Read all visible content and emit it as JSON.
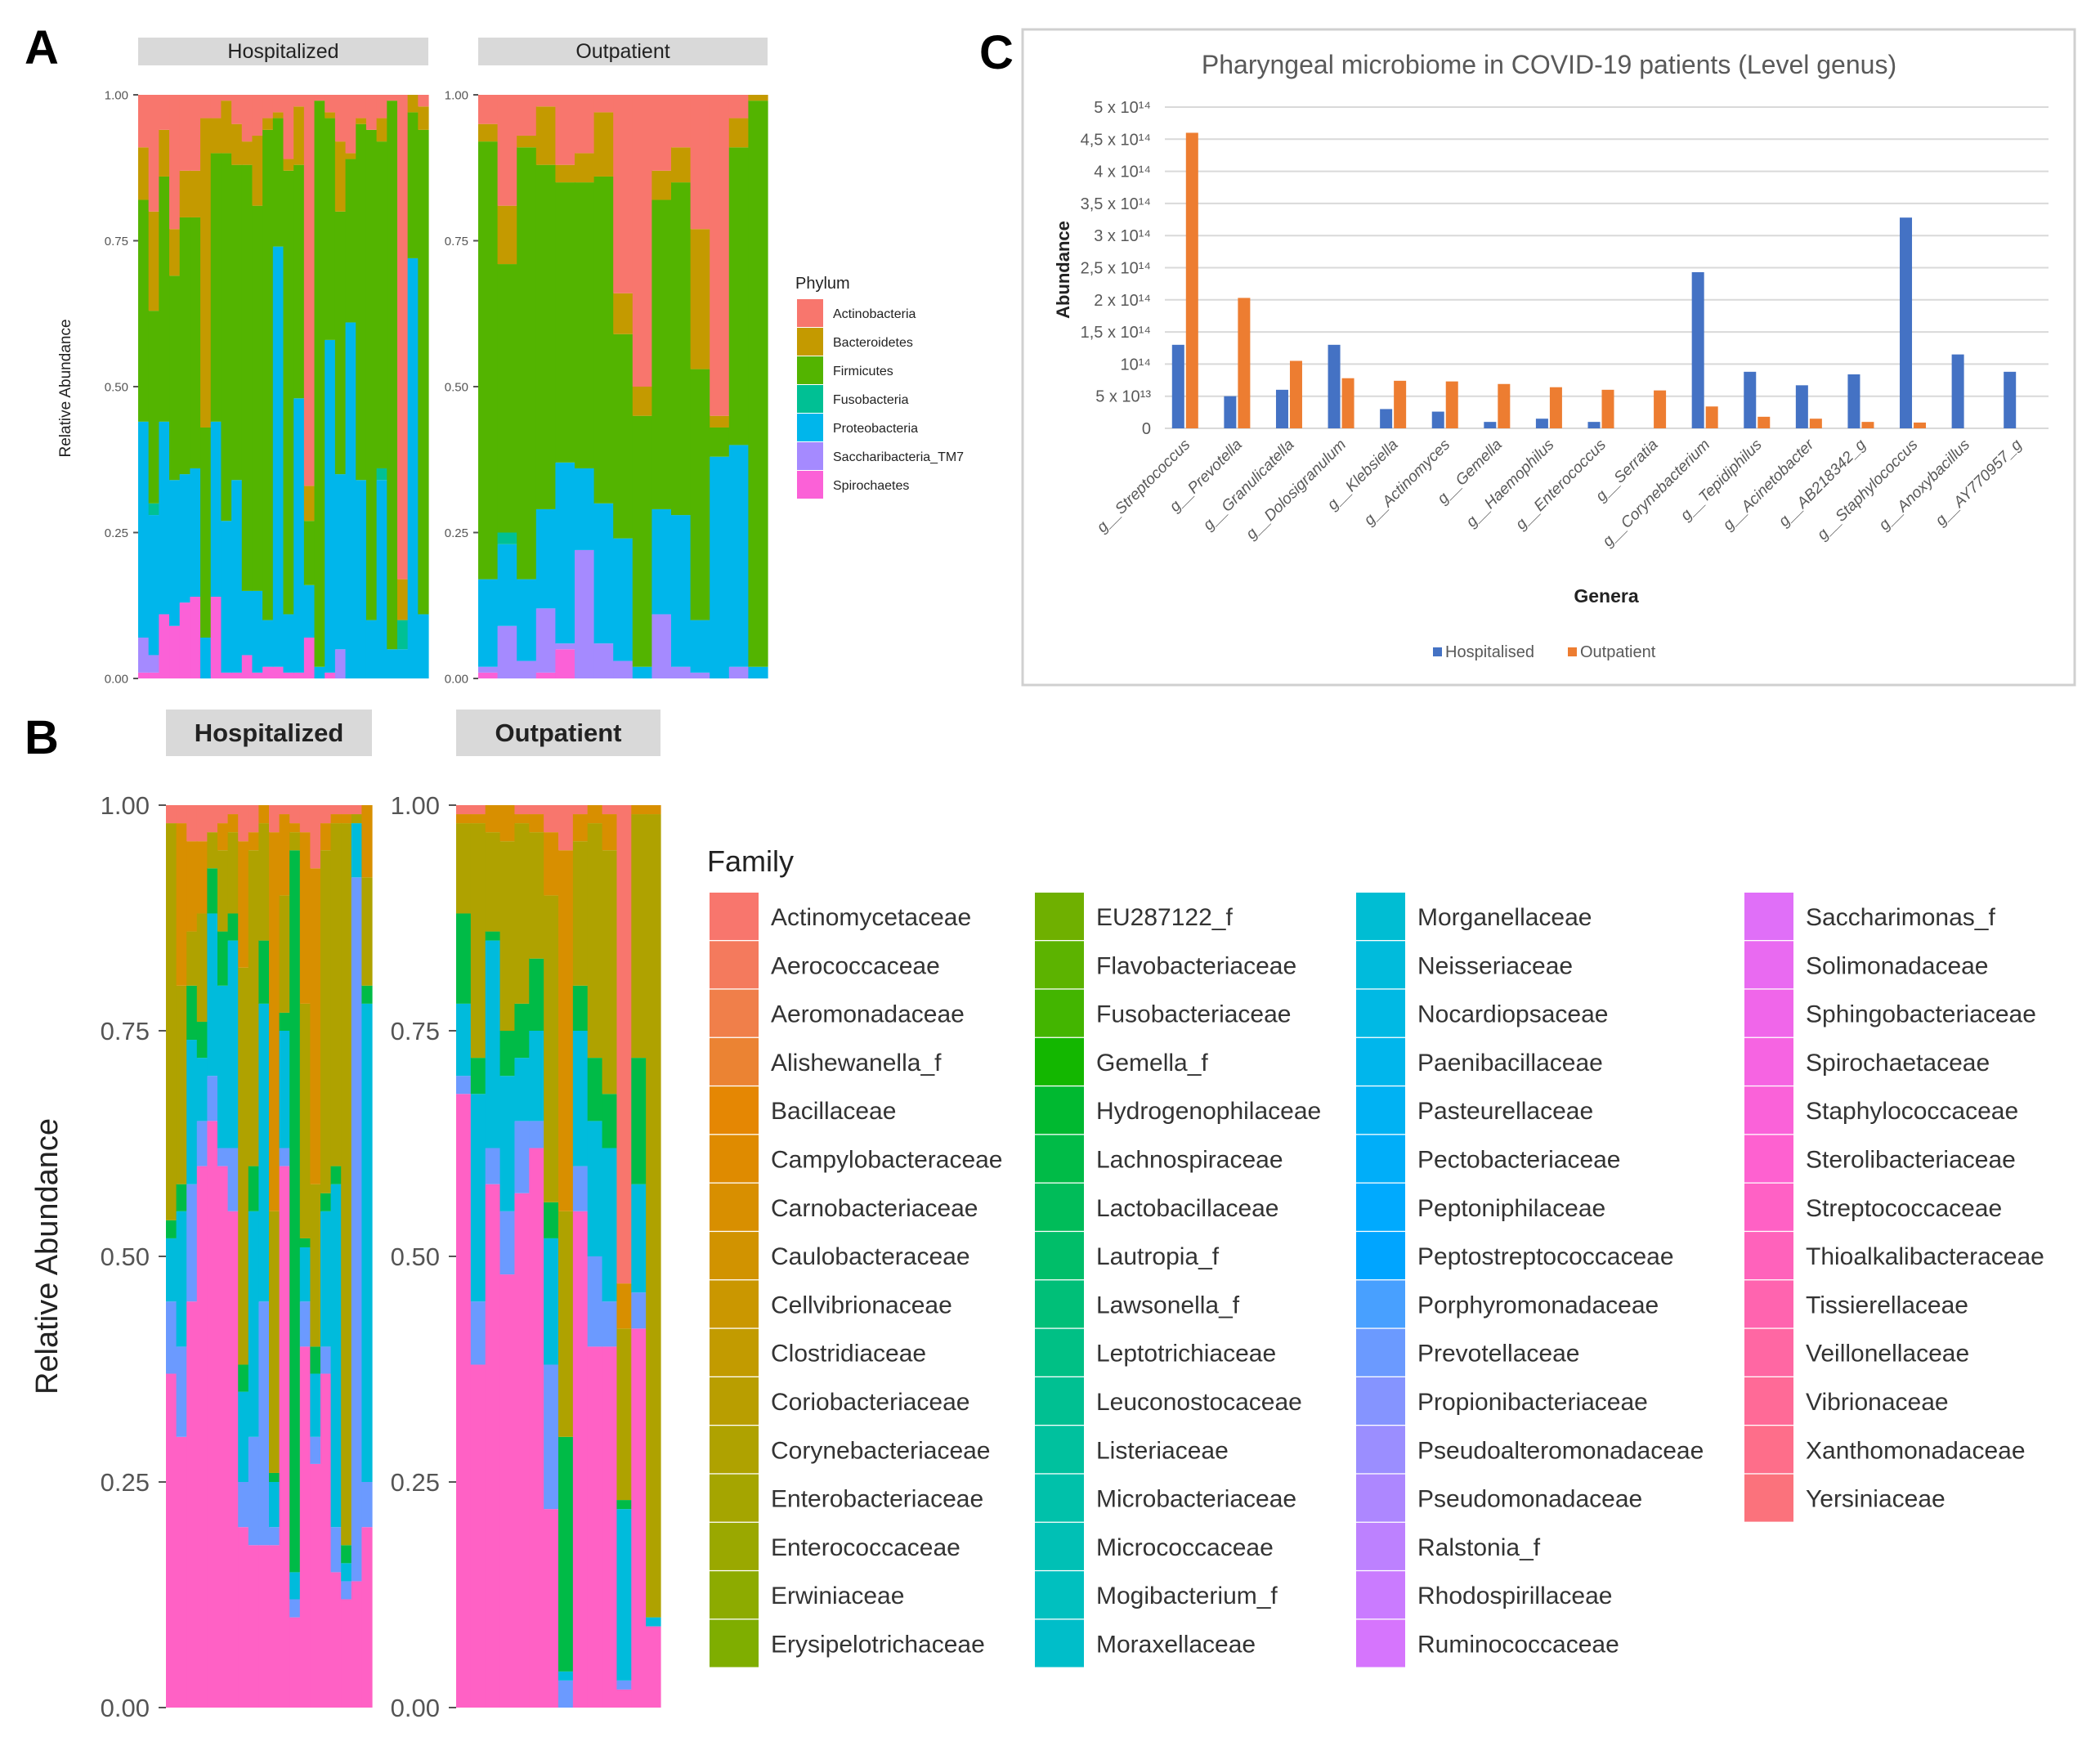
{
  "panels": {
    "a": "A",
    "b": "B",
    "c": "C"
  },
  "chart_data": [
    {
      "panel": "A",
      "type": "bar",
      "stacked": true,
      "facets": [
        "Hospitalized",
        "Outpatient"
      ],
      "ylabel": "Relative Abundance",
      "ylim": [
        0,
        1
      ],
      "yticks": [
        "0.00",
        "0.25",
        "0.50",
        "0.75",
        "1.00"
      ],
      "legend_title": "Phylum",
      "legend_position": "right",
      "categories": [
        "Actinobacteria",
        "Bacteroidetes",
        "Firmicutes",
        "Fusobacteria",
        "Proteobacteria",
        "Saccharibacteria_TM7",
        "Spirochaetes"
      ],
      "colors": [
        "#F8766D",
        "#C49A00",
        "#53B400",
        "#00C094",
        "#00B6EB",
        "#A58AFF",
        "#FB61D7"
      ],
      "stack_order_bottom_up": [
        "Spirochaetes",
        "Saccharibacteria_TM7",
        "Proteobacteria",
        "Fusobacteria",
        "Firmicutes",
        "Bacteroidetes",
        "Actinobacteria"
      ],
      "cumulative_tops": {
        "Hospitalized": [
          [
            0.01,
            0.07,
            0.44,
            0.44,
            0.82,
            0.91
          ],
          [
            0.01,
            0.04,
            0.28,
            0.3,
            0.63,
            0.8
          ],
          [
            0.11,
            0.11,
            0.44,
            0.44,
            0.86,
            0.94
          ],
          [
            0.09,
            0.09,
            0.34,
            0.34,
            0.69,
            0.77
          ],
          [
            0.13,
            0.13,
            0.35,
            0.35,
            0.79,
            0.87
          ],
          [
            0.14,
            0.14,
            0.36,
            0.36,
            0.79,
            0.87
          ],
          [
            0.0,
            0.0,
            0.07,
            0.07,
            0.43,
            0.96
          ],
          [
            0.14,
            0.14,
            0.44,
            0.44,
            0.9,
            0.96
          ],
          [
            0.01,
            0.01,
            0.27,
            0.27,
            0.9,
            0.99
          ],
          [
            0.01,
            0.01,
            0.34,
            0.34,
            0.88,
            0.95
          ],
          [
            0.04,
            0.04,
            0.15,
            0.15,
            0.88,
            0.92
          ],
          [
            0.01,
            0.01,
            0.15,
            0.15,
            0.81,
            0.93
          ],
          [
            0.02,
            0.02,
            0.1,
            0.1,
            0.94,
            0.96
          ],
          [
            0.02,
            0.02,
            0.74,
            0.74,
            0.96,
            0.97
          ],
          [
            0.01,
            0.01,
            0.11,
            0.11,
            0.87,
            0.89
          ],
          [
            0.01,
            0.01,
            0.48,
            0.48,
            0.88,
            0.98
          ],
          [
            0.07,
            0.07,
            0.16,
            0.16,
            0.27,
            0.33
          ],
          [
            0.0,
            0.0,
            0.02,
            0.02,
            0.99,
            0.99
          ],
          [
            0.01,
            0.01,
            0.58,
            0.58,
            0.96,
            0.97
          ],
          [
            0.0,
            0.05,
            0.35,
            0.35,
            0.8,
            0.92
          ],
          [
            0.0,
            0.0,
            0.61,
            0.61,
            0.89,
            0.9
          ],
          [
            0.0,
            0.0,
            0.34,
            0.34,
            0.95,
            0.96
          ],
          [
            0.0,
            0.0,
            0.1,
            0.1,
            0.94,
            0.94
          ],
          [
            0.0,
            0.0,
            0.34,
            0.36,
            0.92,
            0.96
          ],
          [
            0.0,
            0.0,
            0.05,
            0.05,
            0.99,
            0.99
          ],
          [
            0.0,
            0.0,
            0.05,
            0.1,
            0.1,
            0.17
          ],
          [
            0.0,
            0.0,
            0.72,
            0.72,
            0.97,
            1.0
          ],
          [
            0.0,
            0.0,
            0.11,
            0.11,
            0.94,
            0.98
          ]
        ],
        "Outpatient": [
          [
            0.01,
            0.02,
            0.17,
            0.17,
            0.92,
            0.95
          ],
          [
            0.0,
            0.09,
            0.23,
            0.25,
            0.71,
            0.81
          ],
          [
            0.0,
            0.03,
            0.17,
            0.17,
            0.91,
            0.93
          ],
          [
            0.01,
            0.12,
            0.29,
            0.29,
            0.88,
            0.98
          ],
          [
            0.05,
            0.06,
            0.37,
            0.37,
            0.85,
            0.88
          ],
          [
            0.0,
            0.22,
            0.36,
            0.36,
            0.85,
            0.9
          ],
          [
            0.0,
            0.06,
            0.3,
            0.3,
            0.86,
            0.97
          ],
          [
            0.0,
            0.03,
            0.24,
            0.24,
            0.59,
            0.66
          ],
          [
            0.0,
            0.0,
            0.02,
            0.02,
            0.45,
            0.5
          ],
          [
            0.0,
            0.11,
            0.29,
            0.29,
            0.82,
            0.87
          ],
          [
            0.0,
            0.02,
            0.28,
            0.28,
            0.85,
            0.91
          ],
          [
            0.0,
            0.01,
            0.1,
            0.1,
            0.53,
            0.77
          ],
          [
            0.0,
            0.0,
            0.38,
            0.38,
            0.43,
            0.45
          ],
          [
            0.0,
            0.02,
            0.4,
            0.4,
            0.91,
            0.96
          ],
          [
            0.0,
            0.0,
            0.02,
            0.02,
            0.99,
            1.0
          ]
        ]
      }
    },
    {
      "panel": "B",
      "type": "bar",
      "stacked": true,
      "facets": [
        "Hospitalized",
        "Outpatient"
      ],
      "ylabel": "Relative Abundance",
      "ylim": [
        0,
        1
      ],
      "yticks": [
        "0.00",
        "0.25",
        "0.50",
        "0.75",
        "1.00"
      ],
      "legend_title": "Family",
      "legend_position": "right",
      "legend_columns": [
        [
          "Actinomycetaceae",
          "Aerococcaceae",
          "Aeromonadaceae",
          "Alishewanella_f",
          "Bacillaceae",
          "Campylobacteraceae",
          "Carnobacteriaceae",
          "Caulobacteraceae",
          "Cellvibrionaceae",
          "Clostridiaceae",
          "Coriobacteriaceae",
          "Corynebacteriaceae",
          "Enterobacteriaceae",
          "Enterococcaceae",
          "Erwiniaceae",
          "Erysipelotrichaceae"
        ],
        [
          "EU287122_f",
          "Flavobacteriaceae",
          "Fusobacteriaceae",
          "Gemella_f",
          "Hydrogenophilaceae",
          "Lachnospiraceae",
          "Lactobacillaceae",
          "Lautropia_f",
          "Lawsonella_f",
          "Leptotrichiaceae",
          "Leuconostocaceae",
          "Listeriaceae",
          "Microbacteriaceae",
          "Micrococcaceae",
          "Mogibacterium_f",
          "Moraxellaceae"
        ],
        [
          "Morganellaceae",
          "Neisseriaceae",
          "Nocardiopsaceae",
          "Paenibacillaceae",
          "Pasteurellaceae",
          "Pectobacteriaceae",
          "Peptoniphilaceae",
          "Peptostreptococcaceae",
          "Porphyromonadaceae",
          "Prevotellaceae",
          "Propionibacteriaceae",
          "Pseudoalteromonadaceae",
          "Pseudomonadaceae",
          "Ralstonia_f",
          "Rhodospirillaceae",
          "Ruminococcaceae"
        ],
        [
          "Saccharimonas_f",
          "Solimonadaceae",
          "Sphingobacteriaceae",
          "Spirochaetaceae",
          "Staphylococcaceae",
          "Sterolibacteriaceae",
          "Streptococcaceae",
          "Thioalkalibacteraceae",
          "Tissierellaceae",
          "Veillonellaceae",
          "Vibrionaceae",
          "Xanthomonadaceae",
          "Yersiniaceae"
        ]
      ],
      "stack_order_bottom_up": [
        "Streptococcaceae",
        "Prevotellaceae",
        "Neisseriaceae",
        "Lachnospiraceae",
        "Corynebacteriaceae",
        "Carnobacteriaceae",
        "Actinomycetaceae"
      ],
      "cumulative_tops": {
        "Hospitalized": [
          [
            0.37,
            0.45,
            0.52,
            0.54,
            0.98,
            0.98
          ],
          [
            0.3,
            0.4,
            0.55,
            0.58,
            0.8,
            0.98
          ],
          [
            0.45,
            0.58,
            0.74,
            0.8,
            0.86,
            0.96
          ],
          [
            0.6,
            0.65,
            0.72,
            0.76,
            0.88,
            0.96
          ],
          [
            0.65,
            0.7,
            0.88,
            0.93,
            0.97,
            0.97
          ],
          [
            0.6,
            0.62,
            0.8,
            0.86,
            0.95,
            0.98
          ],
          [
            0.55,
            0.62,
            0.85,
            0.88,
            0.97,
            0.99
          ],
          [
            0.2,
            0.25,
            0.35,
            0.38,
            0.82,
            0.96
          ],
          [
            0.18,
            0.3,
            0.55,
            0.6,
            0.95,
            0.97
          ],
          [
            0.18,
            0.45,
            0.78,
            0.85,
            0.98,
            1.0
          ],
          [
            0.18,
            0.2,
            0.25,
            0.26,
            0.55,
            0.97
          ],
          [
            0.6,
            0.62,
            0.75,
            0.77,
            0.9,
            0.99
          ],
          [
            0.1,
            0.12,
            0.15,
            0.95,
            0.97,
            0.98
          ],
          [
            0.4,
            0.45,
            0.51,
            0.52,
            0.78,
            0.97
          ],
          [
            0.27,
            0.3,
            0.37,
            0.4,
            0.58,
            0.93
          ],
          [
            0.37,
            0.4,
            0.55,
            0.57,
            0.95,
            0.98
          ],
          [
            0.15,
            0.2,
            0.58,
            0.6,
            0.98,
            0.99
          ],
          [
            0.12,
            0.14,
            0.16,
            0.18,
            0.98,
            0.99
          ],
          [
            0.14,
            0.92,
            0.98,
            0.98,
            0.99,
            0.99
          ],
          [
            0.2,
            0.25,
            0.78,
            0.8,
            0.92,
            1.0
          ]
        ],
        "Outpatient": [
          [
            0.68,
            0.7,
            0.78,
            0.88,
            0.98,
            0.99
          ],
          [
            0.38,
            0.45,
            0.68,
            0.72,
            0.98,
            0.99
          ],
          [
            0.58,
            0.62,
            0.85,
            0.86,
            0.97,
            1.0
          ],
          [
            0.48,
            0.55,
            0.7,
            0.75,
            0.96,
            1.0
          ],
          [
            0.57,
            0.65,
            0.72,
            0.78,
            0.98,
            0.99
          ],
          [
            0.62,
            0.65,
            0.75,
            0.83,
            0.97,
            0.99
          ],
          [
            0.22,
            0.38,
            0.52,
            0.56,
            0.9,
            0.97
          ],
          [
            0.0,
            0.03,
            0.04,
            0.3,
            0.55,
            0.95
          ],
          [
            0.55,
            0.6,
            0.75,
            0.8,
            0.96,
            0.99
          ],
          [
            0.4,
            0.5,
            0.65,
            0.72,
            0.98,
            1.0
          ],
          [
            0.4,
            0.45,
            0.62,
            0.68,
            0.95,
            0.99
          ],
          [
            0.02,
            0.03,
            0.22,
            0.23,
            0.42,
            0.47
          ],
          [
            0.42,
            0.46,
            0.58,
            0.72,
            0.99,
            1.0
          ],
          [
            0.09,
            0.09,
            0.1,
            0.1,
            0.99,
            1.0
          ]
        ]
      }
    },
    {
      "panel": "C",
      "type": "bar",
      "grouped": true,
      "title": "Pharyngeal microbiome in COVID-19 patients (Level genus)",
      "xlabel": "Genera",
      "ylabel": "Abundance",
      "ylim": [
        0,
        500000000000000.0
      ],
      "grid": true,
      "legend_position": "bottom",
      "yticks": [
        {
          "value": 0,
          "label": "0"
        },
        {
          "value": 50000000000000.0,
          "label": "5 x 10¹³"
        },
        {
          "value": 100000000000000.0,
          "label": "10¹⁴"
        },
        {
          "value": 150000000000000.0,
          "label": "1,5 x 10¹⁴"
        },
        {
          "value": 200000000000000.0,
          "label": "2 x 10¹⁴"
        },
        {
          "value": 250000000000000.0,
          "label": "2,5 x 10¹⁴"
        },
        {
          "value": 300000000000000.0,
          "label": "3 x 10¹⁴"
        },
        {
          "value": 350000000000000.0,
          "label": "3,5 x 10¹⁴"
        },
        {
          "value": 400000000000000.0,
          "label": "4 x 10¹⁴"
        },
        {
          "value": 450000000000000.0,
          "label": "4,5 x 10¹⁴"
        },
        {
          "value": 500000000000000.0,
          "label": "5 x 10¹⁴"
        }
      ],
      "categories": [
        "g__Streptococcus",
        "g__Prevotella",
        "g__Granulicatella",
        "g__Dolosigranulum",
        "g__Klebsiella",
        "g__Actinomyces",
        "g__Gemella",
        "g__Haemophilus",
        "g__Enterococcus",
        "g__Serratia",
        "g__Corynebacterium",
        "g__Tepidiphilus",
        "g__Acinetobacter",
        "g__AB218342_g",
        "g__Staphylococcus",
        "g__Anoxybacillus",
        "g__AY770957_g"
      ],
      "series": [
        {
          "name": "Hospitalised",
          "color": "#4472C4",
          "values": [
            130000000000000.0,
            50000000000000.0,
            60000000000000.0,
            130000000000000.0,
            30000000000000.0,
            26000000000000.0,
            10000000000000.0,
            15000000000000.0,
            10000000000000.0,
            0,
            243000000000000.0,
            88000000000000.0,
            67000000000000.0,
            84000000000000.0,
            328000000000000.0,
            115000000000000.0,
            88000000000000.0
          ]
        },
        {
          "name": "Outpatient",
          "color": "#ED7D31",
          "values": [
            460000000000000.0,
            203000000000000.0,
            105000000000000.0,
            78000000000000.0,
            74000000000000.0,
            73000000000000.0,
            69000000000000.0,
            64000000000000.0,
            60000000000000.0,
            59000000000000.0,
            34000000000000.0,
            18000000000000.0,
            15000000000000.0,
            10000000000000.0,
            9000000000000.0,
            0,
            0
          ]
        }
      ]
    }
  ]
}
